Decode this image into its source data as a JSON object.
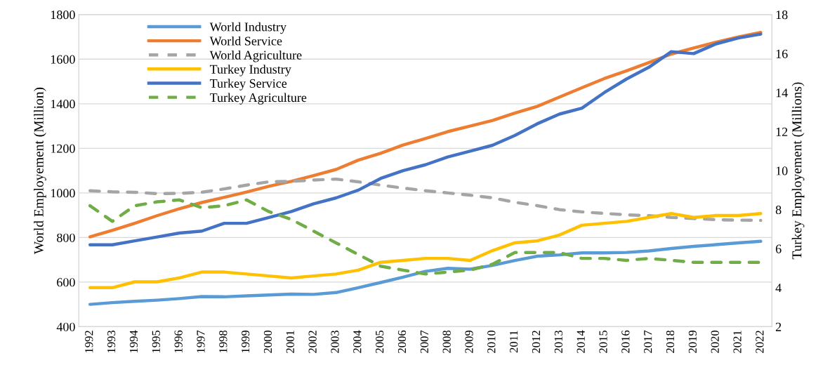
{
  "chart_data": {
    "type": "line",
    "ylabel": "World Employement (Million)",
    "y2label": "Turkey Employement (Millions)",
    "categories": [
      "1992",
      "1993",
      "1994",
      "1995",
      "1996",
      "1997",
      "1998",
      "1999",
      "2000",
      "2001",
      "2002",
      "2003",
      "2004",
      "2005",
      "2006",
      "2007",
      "2008",
      "2009",
      "2010",
      "2011",
      "2012",
      "2013",
      "2014",
      "2015",
      "2016",
      "2017",
      "2018",
      "2019",
      "2020",
      "2021",
      "2022"
    ],
    "series": [
      {
        "name": "World Industry",
        "color": "#5b9bd5",
        "line_style": "solid",
        "values": [
          500,
          508,
          514,
          519,
          526,
          535,
          534,
          538,
          542,
          546,
          545,
          553,
          575,
          598,
          622,
          648,
          662,
          658,
          675,
          697,
          716,
          722,
          731,
          731,
          733,
          740,
          751,
          760,
          768,
          776,
          783
        ]
      },
      {
        "name": "World Service",
        "color": "#ed7d31",
        "line_style": "solid",
        "values": [
          803,
          832,
          864,
          898,
          929,
          957,
          980,
          1004,
          1030,
          1052,
          1078,
          1105,
          1147,
          1178,
          1215,
          1244,
          1275,
          1300,
          1325,
          1358,
          1388,
          1430,
          1472,
          1513,
          1548,
          1585,
          1623,
          1650,
          1676,
          1700,
          1720
        ]
      },
      {
        "name": "World Agriculture",
        "color": "#a5a5a5",
        "line_style": "dashed",
        "values": [
          1010,
          1005,
          1003,
          997,
          998,
          1003,
          1018,
          1035,
          1050,
          1052,
          1058,
          1062,
          1050,
          1035,
          1022,
          1010,
          1000,
          990,
          978,
          958,
          943,
          925,
          915,
          908,
          902,
          898,
          890,
          885,
          880,
          878,
          877
        ]
      },
      {
        "name": "Turkey Industry",
        "color": "#ffc000",
        "line_style": "solid",
        "axis": "y2",
        "values": [
          4.0,
          4.0,
          4.3,
          4.3,
          4.5,
          4.8,
          4.8,
          4.7,
          4.6,
          4.5,
          4.6,
          4.7,
          4.9,
          5.3,
          5.4,
          5.5,
          5.5,
          5.4,
          5.9,
          6.3,
          6.4,
          6.7,
          7.2,
          7.3,
          7.4,
          7.6,
          7.8,
          7.6,
          7.7,
          7.7,
          7.8
        ]
      },
      {
        "name": "Turkey Service",
        "color": "#4472c4",
        "line_style": "solid",
        "axis": "y2",
        "values": [
          6.2,
          6.2,
          6.4,
          6.6,
          6.8,
          6.9,
          7.3,
          7.3,
          7.6,
          7.9,
          8.3,
          8.6,
          9.0,
          9.6,
          10.0,
          10.3,
          10.7,
          11.0,
          11.3,
          11.8,
          12.4,
          12.9,
          13.2,
          14.0,
          14.7,
          15.3,
          16.1,
          16.0,
          16.5,
          16.8,
          17.0
        ]
      },
      {
        "name": "Turkey Agriculture",
        "color": "#70ad47",
        "line_style": "dashed",
        "axis": "y2",
        "values": [
          8.2,
          7.4,
          8.2,
          8.4,
          8.5,
          8.1,
          8.2,
          8.5,
          7.9,
          7.5,
          6.9,
          6.3,
          5.7,
          5.1,
          4.9,
          4.7,
          4.8,
          4.9,
          5.2,
          5.8,
          5.8,
          5.8,
          5.5,
          5.5,
          5.4,
          5.5,
          5.4,
          5.3,
          5.3,
          5.3,
          5.3
        ]
      }
    ],
    "ylim": [
      400,
      1800
    ],
    "yticks": [
      400,
      600,
      800,
      1000,
      1200,
      1400,
      1600,
      1800
    ],
    "y2lim": [
      2,
      18
    ],
    "y2ticks": [
      2,
      4,
      6,
      8,
      10,
      12,
      14,
      16,
      18
    ],
    "grid": "y",
    "legend": "top left",
    "marker": "none"
  }
}
